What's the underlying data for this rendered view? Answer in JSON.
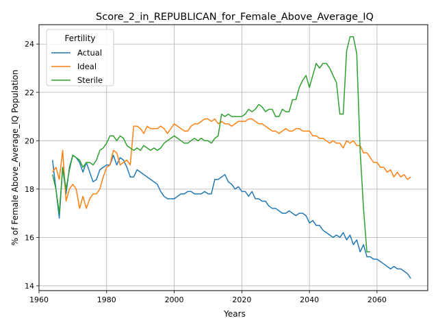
{
  "chart_data": {
    "type": "line",
    "title": "Score_2_in_REPUBLICAN_for_Female_Above_Average_IQ",
    "xlabel": "Years",
    "ylabel": "% of Female Above_Average_IQ Population",
    "xlim": [
      1960,
      2075
    ],
    "ylim": [
      13.8,
      24.8
    ],
    "xticks": [
      1960,
      1980,
      2000,
      2020,
      2040,
      2060
    ],
    "yticks": [
      14,
      16,
      18,
      20,
      22,
      24
    ],
    "grid": true,
    "legend": {
      "title": "Fertility",
      "position": "top-left"
    },
    "series": [
      {
        "name": "Actual",
        "color": "#1f77b4",
        "x": [
          1964,
          1965,
          1966,
          1967,
          1968,
          1969,
          1970,
          1971,
          1972,
          1973,
          1974,
          1975,
          1976,
          1977,
          1978,
          1979,
          1980,
          1981,
          1982,
          1983,
          1984,
          1985,
          1986,
          1987,
          1988,
          1989,
          1990,
          1991,
          1992,
          1993,
          1994,
          1995,
          1996,
          1997,
          1998,
          1999,
          2000,
          2001,
          2002,
          2003,
          2004,
          2005,
          2006,
          2007,
          2008,
          2009,
          2010,
          2011,
          2012,
          2013,
          2014,
          2015,
          2016,
          2017,
          2018,
          2019,
          2020,
          2021,
          2022,
          2023,
          2024,
          2025,
          2026,
          2027,
          2028,
          2029,
          2030,
          2031,
          2032,
          2033,
          2034,
          2035,
          2036,
          2037,
          2038,
          2039,
          2040,
          2041,
          2042,
          2043,
          2044,
          2045,
          2046,
          2047,
          2048,
          2049,
          2050,
          2051,
          2052,
          2053,
          2054,
          2055,
          2056,
          2057,
          2058,
          2059,
          2060,
          2061,
          2062,
          2063,
          2064,
          2065,
          2066,
          2067,
          2068,
          2069,
          2070
        ],
        "y": [
          19.2,
          18.0,
          16.8,
          18.9,
          17.8,
          18.9,
          19.4,
          19.3,
          19.1,
          18.7,
          19.1,
          18.7,
          18.3,
          18.4,
          18.8,
          18.9,
          19.0,
          19.0,
          19.4,
          19.0,
          19.3,
          19.2,
          18.9,
          18.5,
          18.5,
          18.8,
          18.7,
          18.6,
          18.5,
          18.4,
          18.3,
          18.2,
          17.9,
          17.7,
          17.6,
          17.6,
          17.6,
          17.7,
          17.8,
          17.8,
          17.9,
          17.9,
          17.8,
          17.8,
          17.8,
          17.9,
          17.8,
          17.8,
          18.4,
          18.4,
          18.5,
          18.6,
          18.3,
          18.2,
          18.0,
          18.1,
          17.9,
          17.9,
          17.7,
          17.9,
          17.6,
          17.6,
          17.5,
          17.5,
          17.3,
          17.2,
          17.2,
          17.1,
          17.0,
          17.0,
          17.1,
          17.0,
          16.9,
          17.0,
          17.0,
          16.9,
          16.6,
          16.7,
          16.5,
          16.5,
          16.3,
          16.2,
          16.1,
          16.0,
          16.1,
          16.0,
          16.2,
          15.9,
          16.1,
          15.7,
          15.9,
          15.4,
          15.7,
          15.2,
          15.2,
          15.1,
          15.1,
          15.0,
          14.9,
          14.8,
          14.7,
          14.8,
          14.7,
          14.7,
          14.6,
          14.5,
          14.3
        ]
      },
      {
        "name": "Ideal",
        "color": "#ff7f0e",
        "x": [
          1964,
          1965,
          1966,
          1967,
          1968,
          1969,
          1970,
          1971,
          1972,
          1973,
          1974,
          1975,
          1976,
          1977,
          1978,
          1979,
          1980,
          1981,
          1982,
          1983,
          1984,
          1985,
          1986,
          1987,
          1988,
          1989,
          1990,
          1991,
          1992,
          1993,
          1994,
          1995,
          1996,
          1997,
          1998,
          1999,
          2000,
          2001,
          2002,
          2003,
          2004,
          2005,
          2006,
          2007,
          2008,
          2009,
          2010,
          2011,
          2012,
          2013,
          2014,
          2015,
          2016,
          2017,
          2018,
          2019,
          2020,
          2021,
          2022,
          2023,
          2024,
          2025,
          2026,
          2027,
          2028,
          2029,
          2030,
          2031,
          2032,
          2033,
          2034,
          2035,
          2036,
          2037,
          2038,
          2039,
          2040,
          2041,
          2042,
          2043,
          2044,
          2045,
          2046,
          2047,
          2048,
          2049,
          2050,
          2051,
          2052,
          2053,
          2054,
          2055,
          2056,
          2057,
          2058,
          2059,
          2060,
          2061,
          2062,
          2063,
          2064,
          2065,
          2066,
          2067,
          2068,
          2069,
          2070
        ],
        "y": [
          18.7,
          18.9,
          18.4,
          19.6,
          17.5,
          18.0,
          18.2,
          18.0,
          17.2,
          17.7,
          17.2,
          17.6,
          17.8,
          17.8,
          18.0,
          18.5,
          18.9,
          19.0,
          19.6,
          19.5,
          19.0,
          19.1,
          19.2,
          19.0,
          20.6,
          20.6,
          20.5,
          20.3,
          20.6,
          20.5,
          20.5,
          20.5,
          20.6,
          20.5,
          20.3,
          20.5,
          20.7,
          20.6,
          20.5,
          20.4,
          20.4,
          20.6,
          20.7,
          20.7,
          20.8,
          20.9,
          20.9,
          20.8,
          20.9,
          20.7,
          20.8,
          20.7,
          20.7,
          20.6,
          20.7,
          20.8,
          20.8,
          20.8,
          20.9,
          20.9,
          20.8,
          20.7,
          20.7,
          20.6,
          20.5,
          20.4,
          20.4,
          20.3,
          20.4,
          20.5,
          20.4,
          20.4,
          20.5,
          20.5,
          20.4,
          20.4,
          20.4,
          20.2,
          20.2,
          20.1,
          20.1,
          20.0,
          19.9,
          20.0,
          19.9,
          19.9,
          19.7,
          20.0,
          19.9,
          20.0,
          19.8,
          19.8,
          19.5,
          19.5,
          19.3,
          19.1,
          19.1,
          18.9,
          18.9,
          18.7,
          18.8,
          18.5,
          18.7,
          18.5,
          18.6,
          18.4,
          18.5
        ]
      },
      {
        "name": "Sterile",
        "color": "#2ca02c",
        "x": [
          1964,
          1965,
          1966,
          1967,
          1968,
          1969,
          1970,
          1971,
          1972,
          1973,
          1974,
          1975,
          1976,
          1977,
          1978,
          1979,
          1980,
          1981,
          1982,
          1983,
          1984,
          1985,
          1986,
          1987,
          1988,
          1989,
          1990,
          1991,
          1992,
          1993,
          1994,
          1995,
          1996,
          1997,
          1998,
          1999,
          2000,
          2001,
          2002,
          2003,
          2004,
          2005,
          2006,
          2007,
          2008,
          2009,
          2010,
          2011,
          2012,
          2013,
          2014,
          2015,
          2016,
          2017,
          2018,
          2019,
          2020,
          2021,
          2022,
          2023,
          2024,
          2025,
          2026,
          2027,
          2028,
          2029,
          2030,
          2031,
          2032,
          2033,
          2034,
          2035,
          2036,
          2037,
          2038,
          2039,
          2040,
          2041,
          2042,
          2043,
          2044,
          2045,
          2046,
          2047,
          2048,
          2049,
          2050,
          2051,
          2052,
          2053,
          2054,
          2055,
          2056,
          2057,
          2058
        ],
        "y": [
          18.6,
          18.0,
          17.0,
          18.9,
          18.0,
          18.8,
          19.4,
          19.3,
          19.2,
          18.9,
          19.1,
          19.1,
          19.0,
          19.2,
          19.6,
          19.7,
          19.9,
          20.2,
          20.2,
          20.0,
          20.2,
          20.1,
          19.8,
          19.7,
          19.6,
          19.7,
          19.6,
          19.8,
          19.7,
          19.6,
          19.7,
          19.6,
          19.7,
          19.9,
          20.0,
          20.1,
          20.2,
          20.1,
          20.0,
          19.9,
          19.9,
          20.0,
          20.1,
          20.0,
          20.1,
          20.0,
          20.0,
          19.9,
          20.1,
          20.2,
          21.1,
          21.0,
          21.1,
          21.0,
          21.0,
          21.0,
          21.0,
          21.1,
          21.3,
          21.2,
          21.3,
          21.5,
          21.4,
          21.2,
          21.3,
          21.3,
          21.0,
          21.0,
          21.3,
          21.2,
          21.2,
          21.7,
          21.7,
          22.2,
          22.5,
          22.7,
          22.2,
          22.7,
          23.2,
          23.0,
          23.2,
          23.2,
          23.0,
          22.7,
          22.4,
          21.1,
          21.1,
          23.7,
          24.3,
          24.3,
          23.6,
          19.6,
          17.2,
          15.4,
          15.4
        ]
      }
    ]
  }
}
